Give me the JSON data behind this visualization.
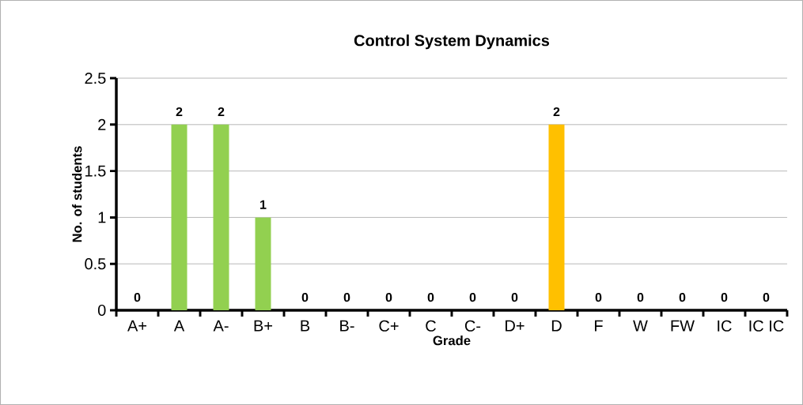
{
  "chart_data": {
    "type": "bar",
    "title": "Control System Dynamics",
    "xlabel": "Grade",
    "ylabel": "No. of students",
    "categories": [
      "A+",
      "A",
      "A-",
      "B+",
      "B",
      "B-",
      "C+",
      "C",
      "C-",
      "D+",
      "D",
      "F",
      "W",
      "FW",
      "IC",
      "IC IC"
    ],
    "values": [
      0,
      2,
      2,
      1,
      0,
      0,
      0,
      0,
      0,
      0,
      2,
      0,
      0,
      0,
      0,
      0
    ],
    "colors": [
      "#92d050",
      "#92d050",
      "#92d050",
      "#92d050",
      "#92d050",
      "#92d050",
      "#92d050",
      "#92d050",
      "#92d050",
      "#92d050",
      "#ffc000",
      "#92d050",
      "#92d050",
      "#92d050",
      "#92d050",
      "#92d050"
    ],
    "ylim": [
      0,
      2.5
    ],
    "yticks": [
      0,
      0.5,
      1,
      1.5,
      2,
      2.5
    ],
    "grid": true,
    "data_labels": true
  }
}
